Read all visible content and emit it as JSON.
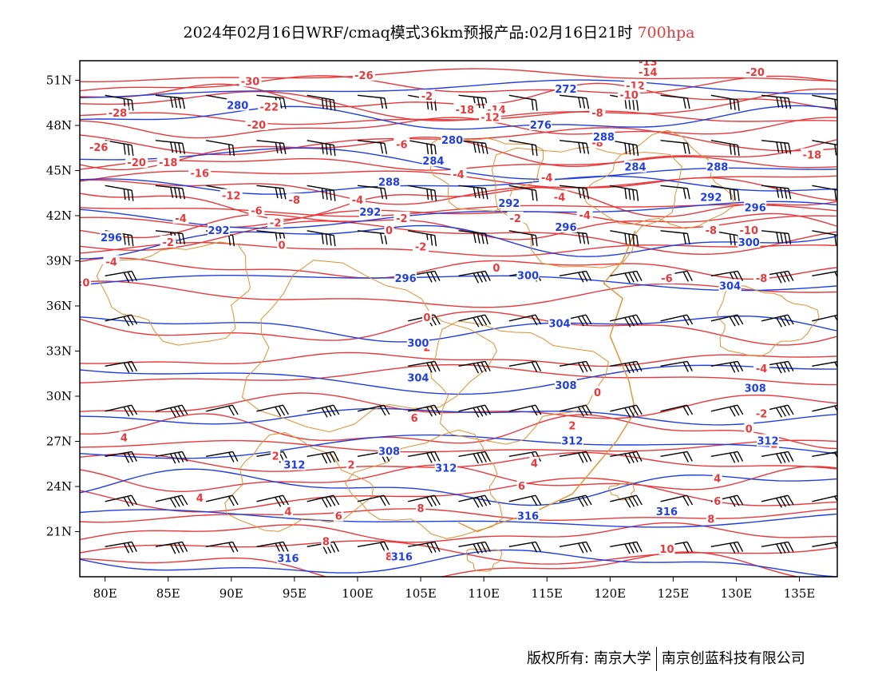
{
  "title": {
    "main": "2024年02月16日WRF/cmaq模式36km预报产品:02月16日21时",
    "level": "700hpa"
  },
  "axes": {
    "lat_labels": [
      "51N",
      "48N",
      "45N",
      "42N",
      "39N",
      "36N",
      "33N",
      "30N",
      "27N",
      "24N",
      "21N"
    ],
    "lon_labels": [
      "80E",
      "85E",
      "90E",
      "95E",
      "100E",
      "105E",
      "110E",
      "115E",
      "120E",
      "125E",
      "130E",
      "135E"
    ]
  },
  "colors": {
    "temperature_contour": "#e8383a",
    "geopotential_contour": "#1f3fe0",
    "border": "#e09030",
    "wind_barb": "#000000"
  },
  "map_data": {
    "temperature_labels": [
      {
        "text": "-28",
        "lon": 81,
        "lat": 48.8
      },
      {
        "text": "-26",
        "lon": 79.5,
        "lat": 46.5
      },
      {
        "text": "-30",
        "lon": 91.5,
        "lat": 50.9
      },
      {
        "text": "-26",
        "lon": 100.5,
        "lat": 51.3
      },
      {
        "text": "-22",
        "lon": 93,
        "lat": 49.2
      },
      {
        "text": "-20",
        "lon": 92,
        "lat": 48
      },
      {
        "text": "-20",
        "lon": 82.5,
        "lat": 45.5
      },
      {
        "text": "-18",
        "lon": 85,
        "lat": 45.5
      },
      {
        "text": "-16",
        "lon": 87.5,
        "lat": 44.8
      },
      {
        "text": "-12",
        "lon": 90,
        "lat": 43.3
      },
      {
        "text": "-8",
        "lon": 95,
        "lat": 43
      },
      {
        "text": "-4",
        "lon": 100,
        "lat": 43
      },
      {
        "text": "-6",
        "lon": 92,
        "lat": 42.3
      },
      {
        "text": "-4",
        "lon": 86,
        "lat": 41.8
      },
      {
        "text": "-2",
        "lon": 93.5,
        "lat": 41.5
      },
      {
        "text": "-2",
        "lon": 85,
        "lat": 40.2
      },
      {
        "text": "0",
        "lon": 94,
        "lat": 40
      },
      {
        "text": "-4",
        "lon": 80.5,
        "lat": 38.9
      },
      {
        "text": "0",
        "lon": 78.5,
        "lat": 37.5
      },
      {
        "text": "-2",
        "lon": 103.5,
        "lat": 41.8
      },
      {
        "text": "0",
        "lon": 102.5,
        "lat": 41
      },
      {
        "text": "-2",
        "lon": 105,
        "lat": 39.9
      },
      {
        "text": "-6",
        "lon": 103.5,
        "lat": 46.7
      },
      {
        "text": "-4",
        "lon": 108,
        "lat": 44.7
      },
      {
        "text": "-4",
        "lon": 115,
        "lat": 44.5
      },
      {
        "text": "-4",
        "lon": 116,
        "lat": 43.2
      },
      {
        "text": "-4",
        "lon": 118,
        "lat": 42
      },
      {
        "text": "-2",
        "lon": 112.5,
        "lat": 41.8
      },
      {
        "text": "-2",
        "lon": 105.5,
        "lat": 49.9
      },
      {
        "text": "-18",
        "lon": 108.5,
        "lat": 49
      },
      {
        "text": "-14",
        "lon": 111,
        "lat": 49
      },
      {
        "text": "-12",
        "lon": 110.5,
        "lat": 48.5
      },
      {
        "text": "-13",
        "lon": 123,
        "lat": 52.2
      },
      {
        "text": "-14",
        "lon": 123,
        "lat": 51.5
      },
      {
        "text": "-12",
        "lon": 122,
        "lat": 50.6
      },
      {
        "text": "-10",
        "lon": 121.5,
        "lat": 50
      },
      {
        "text": "-8",
        "lon": 119,
        "lat": 48.8
      },
      {
        "text": "-8",
        "lon": 119,
        "lat": 46.8
      },
      {
        "text": "-20",
        "lon": 131.5,
        "lat": 51.5
      },
      {
        "text": "-18",
        "lon": 136,
        "lat": 46
      },
      {
        "text": "-8",
        "lon": 128,
        "lat": 41
      },
      {
        "text": "-10",
        "lon": 131,
        "lat": 41
      },
      {
        "text": "-6",
        "lon": 124.5,
        "lat": 37.8
      },
      {
        "text": "-8",
        "lon": 132,
        "lat": 37.8
      },
      {
        "text": "0",
        "lon": 111,
        "lat": 38.5
      },
      {
        "text": "-4",
        "lon": 132,
        "lat": 31.8
      },
      {
        "text": "-2",
        "lon": 132,
        "lat": 28.8
      },
      {
        "text": "0",
        "lon": 131,
        "lat": 27.8
      },
      {
        "text": "0",
        "lon": 119,
        "lat": 30.2
      },
      {
        "text": "2",
        "lon": 133,
        "lat": 26.8
      },
      {
        "text": "2",
        "lon": 117,
        "lat": 28
      },
      {
        "text": "4",
        "lon": 114,
        "lat": 25.5
      },
      {
        "text": "4",
        "lon": 128.5,
        "lat": 24.5
      },
      {
        "text": "6",
        "lon": 113,
        "lat": 24
      },
      {
        "text": "6",
        "lon": 128.5,
        "lat": 23
      },
      {
        "text": "8",
        "lon": 128,
        "lat": 21.8
      },
      {
        "text": "10",
        "lon": 124.5,
        "lat": 19.8
      },
      {
        "text": "6",
        "lon": 104.5,
        "lat": 28.5
      },
      {
        "text": "2",
        "lon": 93.5,
        "lat": 26
      },
      {
        "text": "4",
        "lon": 81.5,
        "lat": 27.2
      },
      {
        "text": "4",
        "lon": 87.5,
        "lat": 23.2
      },
      {
        "text": "4",
        "lon": 94.5,
        "lat": 22.3
      },
      {
        "text": "6",
        "lon": 98.5,
        "lat": 22
      },
      {
        "text": "8",
        "lon": 97.5,
        "lat": 20.3
      },
      {
        "text": "8",
        "lon": 102.5,
        "lat": 19.3
      },
      {
        "text": "2",
        "lon": 99.5,
        "lat": 25.4
      },
      {
        "text": "8",
        "lon": 105,
        "lat": 22.5
      },
      {
        "text": "0",
        "lon": 105.5,
        "lat": 35.2
      },
      {
        "text": "2",
        "lon": 105.5,
        "lat": 33.2
      }
    ],
    "height_labels": [
      {
        "text": "280",
        "lon": 90.5,
        "lat": 49.3
      },
      {
        "text": "272",
        "lon": 116.5,
        "lat": 50.4
      },
      {
        "text": "276",
        "lon": 114.5,
        "lat": 48
      },
      {
        "text": "280",
        "lon": 107.5,
        "lat": 47
      },
      {
        "text": "284",
        "lon": 106,
        "lat": 45.6
      },
      {
        "text": "288",
        "lon": 102.5,
        "lat": 44.2
      },
      {
        "text": "284",
        "lon": 122,
        "lat": 45.2
      },
      {
        "text": "288",
        "lon": 119.5,
        "lat": 47.2
      },
      {
        "text": "288",
        "lon": 128.5,
        "lat": 45.2
      },
      {
        "text": "292",
        "lon": 128,
        "lat": 43.2
      },
      {
        "text": "292",
        "lon": 101,
        "lat": 42.2
      },
      {
        "text": "292",
        "lon": 112,
        "lat": 42.8
      },
      {
        "text": "292",
        "lon": 89,
        "lat": 41
      },
      {
        "text": "296",
        "lon": 80.5,
        "lat": 40.5
      },
      {
        "text": "296",
        "lon": 116.5,
        "lat": 41.2
      },
      {
        "text": "296",
        "lon": 131.5,
        "lat": 42.5
      },
      {
        "text": "300",
        "lon": 131,
        "lat": 40.2
      },
      {
        "text": "296",
        "lon": 103.8,
        "lat": 37.8
      },
      {
        "text": "300",
        "lon": 113.5,
        "lat": 38
      },
      {
        "text": "304",
        "lon": 129.5,
        "lat": 37.3
      },
      {
        "text": "300",
        "lon": 104.8,
        "lat": 33.5
      },
      {
        "text": "304",
        "lon": 116,
        "lat": 34.8
      },
      {
        "text": "304",
        "lon": 104.8,
        "lat": 31.2
      },
      {
        "text": "308",
        "lon": 116.5,
        "lat": 30.7
      },
      {
        "text": "308",
        "lon": 131.5,
        "lat": 30.5
      },
      {
        "text": "308",
        "lon": 102.5,
        "lat": 26.3
      },
      {
        "text": "312",
        "lon": 95,
        "lat": 25.4
      },
      {
        "text": "312",
        "lon": 107,
        "lat": 25.2
      },
      {
        "text": "312",
        "lon": 117,
        "lat": 27
      },
      {
        "text": "312",
        "lon": 132.5,
        "lat": 27
      },
      {
        "text": "316",
        "lon": 113.5,
        "lat": 22
      },
      {
        "text": "316",
        "lon": 124.5,
        "lat": 22.3
      },
      {
        "text": "316",
        "lon": 94.5,
        "lat": 19.2
      },
      {
        "text": "316",
        "lon": 103.5,
        "lat": 19.3
      }
    ]
  },
  "footer": {
    "copyright": "版权所有: 南京大学",
    "company": "南京创蓝科技有限公司"
  }
}
